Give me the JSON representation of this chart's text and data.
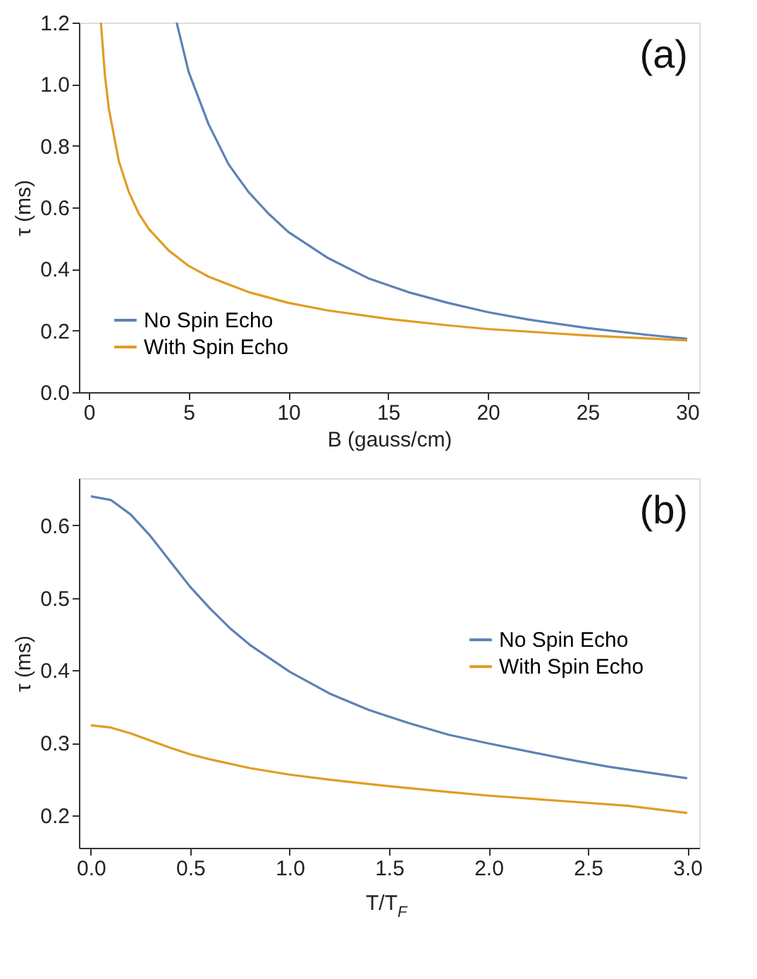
{
  "chart_data": [
    {
      "type": "line",
      "xlabel": "B (gauss/cm)",
      "ylabel": "τ (ms)",
      "annotations": [
        "(a)"
      ],
      "xlim": [
        -0.5,
        30.6
      ],
      "ylim": [
        0,
        1.2
      ],
      "xticks": [
        0,
        5,
        10,
        15,
        20,
        25,
        30
      ],
      "yticks": [
        {
          "value": 0,
          "label": "0.0"
        },
        0.2,
        0.4,
        0.6,
        0.8,
        {
          "value": 1,
          "label": "1.0"
        },
        1.2
      ],
      "legend": "bottom left",
      "grid": false,
      "series": [
        {
          "name": "No Spin Echo",
          "color": "#5e81b5",
          "x": [
            4.4,
            5,
            6,
            7,
            8,
            9,
            10,
            12,
            14,
            16,
            18,
            20,
            22,
            25,
            28,
            30
          ],
          "values": [
            1.2,
            1.04,
            0.87,
            0.74,
            0.65,
            0.58,
            0.52,
            0.435,
            0.37,
            0.325,
            0.29,
            0.26,
            0.236,
            0.208,
            0.186,
            0.173
          ]
        },
        {
          "name": "With Spin Echo",
          "color": "#e19c24",
          "x": [
            0.6,
            0.8,
            1,
            1.5,
            2,
            2.5,
            3,
            4,
            5,
            6,
            7,
            8,
            10,
            12,
            15,
            18,
            20,
            25,
            30
          ],
          "values": [
            1.2,
            1.03,
            0.92,
            0.75,
            0.65,
            0.58,
            0.53,
            0.46,
            0.41,
            0.375,
            0.35,
            0.325,
            0.29,
            0.265,
            0.238,
            0.217,
            0.205,
            0.184,
            0.168
          ]
        }
      ]
    },
    {
      "type": "line",
      "xlabel": "T/T$_{F}$",
      "ylabel": "τ (ms)",
      "annotations": [
        "(b)"
      ],
      "xlim": [
        -0.06,
        3.06
      ],
      "ylim": [
        0.155,
        0.665
      ],
      "xticks": [
        {
          "value": 0,
          "label": "0.0"
        },
        0.5,
        {
          "value": 1,
          "label": "1.0"
        },
        1.5,
        {
          "value": 2,
          "label": "2.0"
        },
        2.5,
        {
          "value": 3,
          "label": "3.0"
        }
      ],
      "yticks": [
        0.2,
        0.3,
        0.4,
        0.5,
        0.6
      ],
      "legend": "right",
      "grid": false,
      "series": [
        {
          "name": "No Spin Echo",
          "color": "#5e81b5",
          "x": [
            0,
            0.1,
            0.2,
            0.3,
            0.4,
            0.5,
            0.6,
            0.7,
            0.8,
            1.0,
            1.2,
            1.4,
            1.6,
            1.8,
            2.0,
            2.2,
            2.4,
            2.6,
            2.8,
            3.0
          ],
          "values": [
            0.64,
            0.635,
            0.615,
            0.585,
            0.55,
            0.515,
            0.485,
            0.458,
            0.435,
            0.398,
            0.368,
            0.345,
            0.327,
            0.311,
            0.299,
            0.288,
            0.277,
            0.267,
            0.259,
            0.251
          ]
        },
        {
          "name": "With Spin Echo",
          "color": "#e19c24",
          "x": [
            0,
            0.1,
            0.2,
            0.3,
            0.4,
            0.5,
            0.6,
            0.8,
            1.0,
            1.2,
            1.5,
            1.8,
            2.0,
            2.4,
            2.7,
            3.0
          ],
          "values": [
            0.324,
            0.321,
            0.313,
            0.303,
            0.293,
            0.284,
            0.277,
            0.265,
            0.256,
            0.249,
            0.24,
            0.232,
            0.227,
            0.219,
            0.213,
            0.203
          ]
        }
      ]
    }
  ]
}
